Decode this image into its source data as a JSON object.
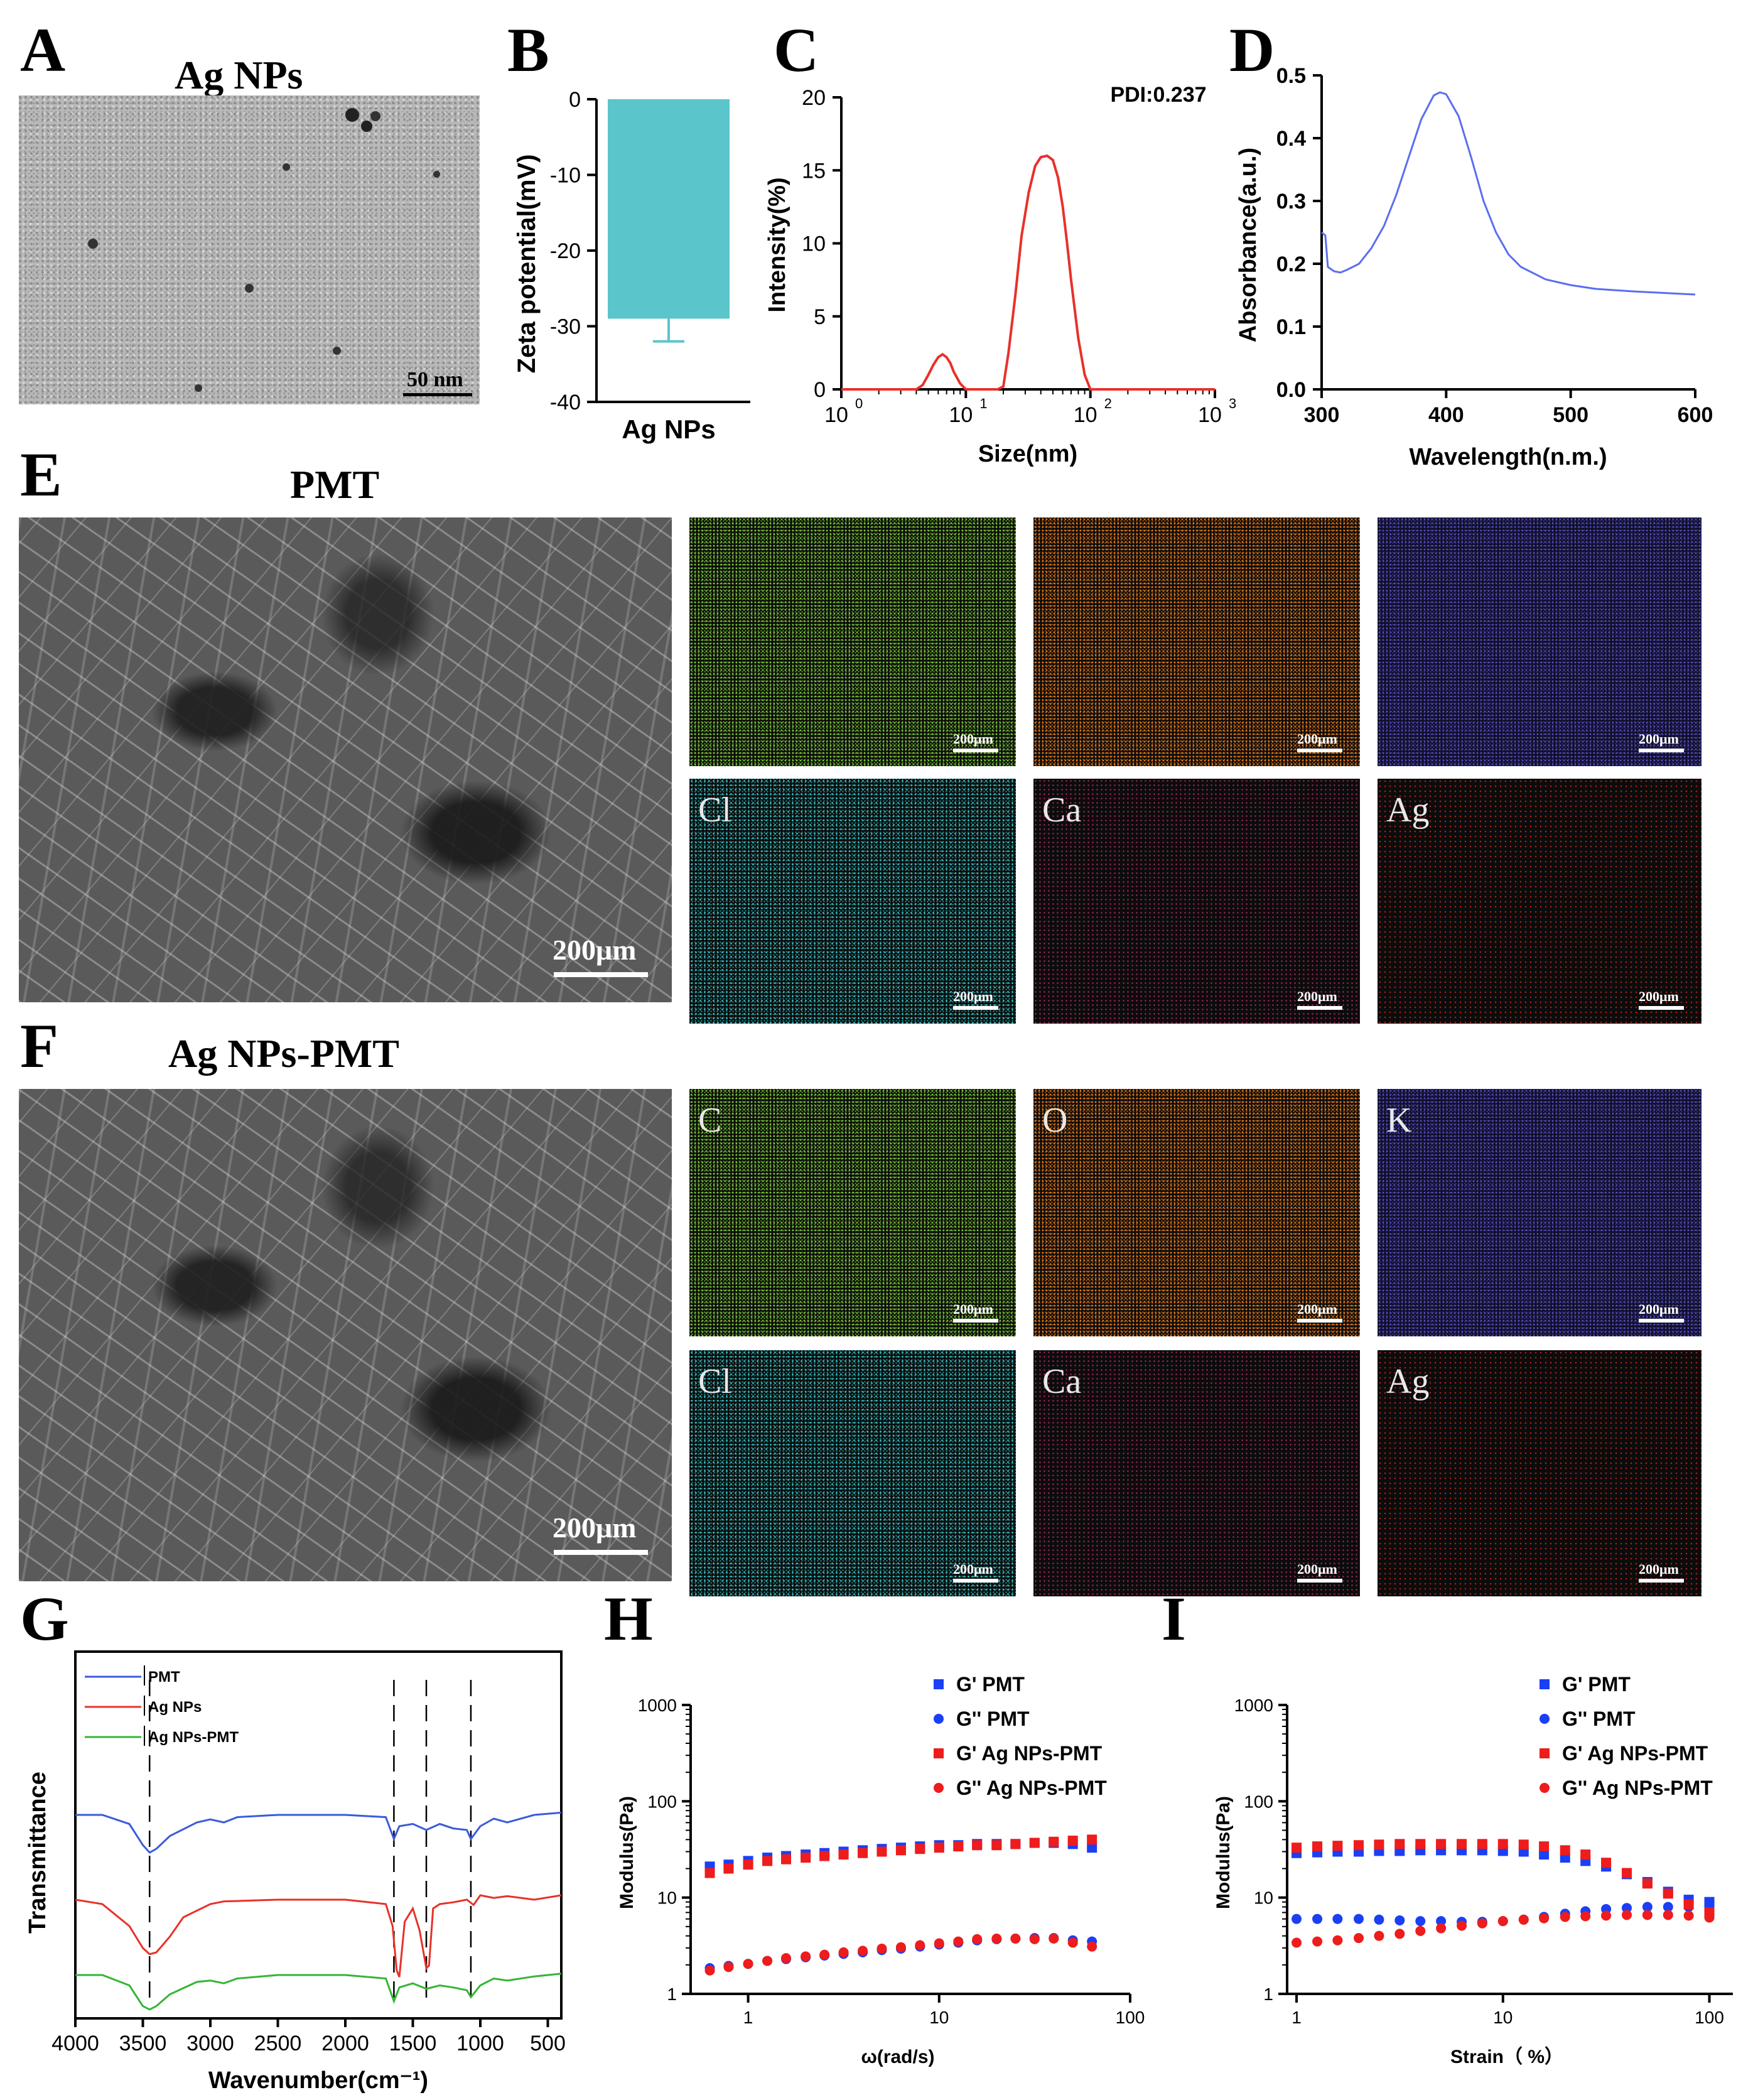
{
  "panel_letters": {
    "A": "A",
    "B": "B",
    "C": "C",
    "D": "D",
    "E": "E",
    "F": "F",
    "G": "G",
    "H": "H",
    "I": "I"
  },
  "panel_A": {
    "title": "Ag NPs",
    "scale_bar": "50 nm"
  },
  "panel_E": {
    "title": "PMT",
    "sem_scale_bar": "200μm",
    "map_scale_bar": "200μm",
    "elements": [
      "",
      "",
      "",
      "Cl",
      "Ca",
      "Ag"
    ]
  },
  "panel_F": {
    "title": "Ag NPs-PMT",
    "sem_scale_bar": "200μm",
    "map_scale_bar": "200μm",
    "elements": [
      "C",
      "O",
      "K",
      "Cl",
      "Ca",
      "Ag"
    ]
  },
  "colors": {
    "bar": "#5bc5cc",
    "dls": "#e8312a",
    "uv": "#5a6ef0",
    "pmt": "#3b5bdb",
    "ag": "#e8312a",
    "agpmt": "#36b536",
    "gp_pmt": "#1a3ff5",
    "gp_ag": "#ee1c1c"
  },
  "chart_data": [
    {
      "id": "B",
      "type": "bar",
      "categories": [
        "Ag NPs"
      ],
      "values": [
        -29
      ],
      "error": [
        3
      ],
      "ylabel": "Zeta potential(mV)",
      "ylim": [
        -40,
        0
      ],
      "yticks": [
        "0",
        "-10",
        "-20",
        "-30",
        "-40"
      ]
    },
    {
      "id": "C",
      "type": "line",
      "title": "PDI:0.237",
      "xlabel": "Size(nm)",
      "ylabel": "Intensity(%)",
      "xscale": "log",
      "xlim": [
        1,
        1000
      ],
      "ylim": [
        0,
        20
      ],
      "yticks": [
        "0",
        "5",
        "10",
        "15",
        "20"
      ],
      "xticks": [
        "10",
        "10",
        "10",
        "10"
      ],
      "xtick_exps": [
        "0",
        "1",
        "2",
        "3"
      ],
      "x": [
        1,
        3,
        4,
        4.5,
        5,
        5.5,
        6,
        6.5,
        7,
        7.5,
        8,
        9,
        10,
        12,
        15,
        18,
        20,
        22,
        25,
        28,
        32,
        36,
        40,
        45,
        50,
        55,
        60,
        65,
        70,
        80,
        90,
        100,
        200,
        1000
      ],
      "y": [
        0,
        0,
        0,
        0.3,
        1.0,
        1.7,
        2.2,
        2.4,
        2.2,
        1.8,
        1.2,
        0.4,
        0,
        0,
        0,
        0,
        0.2,
        2.5,
        6.5,
        10.5,
        13.5,
        15.3,
        15.9,
        16,
        15.7,
        14.5,
        12.5,
        10,
        7.5,
        3.5,
        1.0,
        0,
        0,
        0
      ]
    },
    {
      "id": "D",
      "type": "line",
      "xlabel": "Wavelength(n.m.)",
      "ylabel": "Absorbance(a.u.)",
      "xlim": [
        300,
        600
      ],
      "ylim": [
        0,
        0.5
      ],
      "xticks": [
        "300",
        "400",
        "500",
        "600"
      ],
      "yticks": [
        "0.0",
        "0.1",
        "0.2",
        "0.3",
        "0.4",
        "0.5"
      ],
      "x": [
        300,
        303,
        305,
        310,
        315,
        320,
        330,
        340,
        350,
        360,
        370,
        380,
        390,
        395,
        400,
        410,
        420,
        430,
        440,
        450,
        460,
        480,
        500,
        520,
        550,
        580,
        600
      ],
      "y": [
        0.25,
        0.245,
        0.195,
        0.188,
        0.186,
        0.19,
        0.2,
        0.225,
        0.26,
        0.31,
        0.37,
        0.43,
        0.468,
        0.473,
        0.47,
        0.435,
        0.37,
        0.3,
        0.25,
        0.215,
        0.195,
        0.175,
        0.166,
        0.16,
        0.156,
        0.153,
        0.151
      ]
    },
    {
      "id": "G",
      "type": "line",
      "xlabel": "Wavenumber(cm⁻¹)",
      "ylabel": "Transmittance",
      "xlim": [
        4000,
        400
      ],
      "xticks": [
        "4000",
        "3500",
        "3000",
        "2500",
        "2000",
        "1500",
        "1000",
        "500"
      ],
      "series": [
        {
          "name": "PMT",
          "offset": 2,
          "x": [
            4000,
            3800,
            3600,
            3500,
            3450,
            3400,
            3300,
            3100,
            3000,
            2900,
            2800,
            2500,
            2000,
            1700,
            1640,
            1600,
            1500,
            1400,
            1300,
            1200,
            1100,
            1070,
            1000,
            900,
            800,
            600,
            400
          ],
          "y": [
            0,
            0,
            -0.12,
            -0.4,
            -0.5,
            -0.45,
            -0.28,
            -0.1,
            -0.06,
            -0.1,
            -0.03,
            0,
            0,
            -0.03,
            -0.32,
            -0.15,
            -0.12,
            -0.2,
            -0.12,
            -0.18,
            -0.2,
            -0.32,
            -0.15,
            -0.05,
            -0.1,
            0,
            0.03
          ]
        },
        {
          "name": "Ag NPs",
          "offset": 1,
          "x": [
            4000,
            3800,
            3600,
            3500,
            3450,
            3400,
            3300,
            3200,
            3000,
            2900,
            2500,
            2000,
            1700,
            1650,
            1620,
            1600,
            1560,
            1500,
            1450,
            1400,
            1380,
            1350,
            1300,
            1200,
            1100,
            1050,
            1000,
            900,
            800,
            600,
            400
          ],
          "y": [
            0,
            -0.05,
            -0.3,
            -0.55,
            -0.62,
            -0.6,
            -0.42,
            -0.2,
            -0.05,
            -0.02,
            0,
            0,
            -0.05,
            -0.3,
            -0.8,
            -0.88,
            -0.25,
            -0.1,
            -0.35,
            -0.78,
            -0.75,
            -0.1,
            -0.05,
            -0.03,
            0,
            -0.06,
            0.05,
            0.02,
            0.04,
            0,
            0.05
          ]
        },
        {
          "name": "Ag NPs-PMT",
          "offset": 0,
          "x": [
            4000,
            3800,
            3600,
            3500,
            3450,
            3400,
            3300,
            3100,
            3000,
            2900,
            2800,
            2500,
            2000,
            1700,
            1640,
            1600,
            1500,
            1400,
            1300,
            1200,
            1100,
            1070,
            1000,
            900,
            800,
            600,
            400
          ],
          "y": [
            0,
            0,
            -0.15,
            -0.45,
            -0.5,
            -0.45,
            -0.28,
            -0.1,
            -0.08,
            -0.12,
            -0.05,
            0,
            0,
            -0.05,
            -0.38,
            -0.18,
            -0.12,
            -0.2,
            -0.15,
            -0.18,
            -0.22,
            -0.32,
            -0.15,
            -0.05,
            -0.08,
            -0.02,
            0.02
          ]
        }
      ],
      "marker_lines": [
        3450,
        1640,
        1400,
        1070
      ]
    },
    {
      "id": "H",
      "type": "scatter",
      "xlabel": "ω(rad/s)",
      "ylabel": "Modulus(Pa)",
      "xscale": "log",
      "yscale": "log",
      "xlim": [
        0.5,
        100
      ],
      "ylim": [
        1,
        1000
      ],
      "xticks": [
        "1",
        "10",
        "100"
      ],
      "yticks": [
        "1",
        "10",
        "100",
        "1000"
      ],
      "x": [
        0.63,
        0.79,
        1,
        1.26,
        1.58,
        2,
        2.51,
        3.16,
        3.98,
        5.01,
        6.31,
        7.94,
        10,
        12.6,
        15.8,
        20,
        25.1,
        31.6,
        39.8,
        50.1,
        63.1
      ],
      "series": [
        {
          "name": "G' PMT",
          "marker": "square",
          "color": "#1a3ff5",
          "values": [
            21,
            22,
            24,
            26,
            27,
            28,
            29,
            30,
            31,
            32,
            33,
            34,
            35,
            35,
            36,
            36,
            36,
            37,
            37,
            36,
            33
          ]
        },
        {
          "name": "G'' PMT",
          "marker": "circle",
          "color": "#1a3ff5",
          "values": [
            1.85,
            1.95,
            2.05,
            2.2,
            2.3,
            2.4,
            2.5,
            2.6,
            2.7,
            2.85,
            2.95,
            3.1,
            3.25,
            3.4,
            3.6,
            3.7,
            3.75,
            3.8,
            3.8,
            3.6,
            3.5
          ]
        },
        {
          "name": "G' Ag NPs-PMT",
          "marker": "square",
          "color": "#ee1c1c",
          "values": [
            18,
            20,
            22,
            24,
            25,
            26,
            27,
            28,
            29,
            30,
            31,
            32,
            33,
            34,
            35,
            35,
            36,
            37,
            38,
            39,
            40
          ]
        },
        {
          "name": "G'' Ag NPs-PMT",
          "marker": "circle",
          "color": "#ee1c1c",
          "values": [
            1.75,
            1.9,
            2.05,
            2.2,
            2.35,
            2.45,
            2.55,
            2.7,
            2.8,
            2.95,
            3.05,
            3.2,
            3.35,
            3.5,
            3.7,
            3.75,
            3.75,
            3.7,
            3.75,
            3.4,
            3.1
          ]
        }
      ]
    },
    {
      "id": "I",
      "type": "scatter",
      "xlabel": "Strain（ %）",
      "ylabel": "Modulus(Pa)",
      "xscale": "log",
      "yscale": "log",
      "xlim": [
        0.9,
        130
      ],
      "ylim": [
        1,
        1000
      ],
      "xticks": [
        "1",
        "10",
        "100"
      ],
      "yticks": [
        "1",
        "10",
        "100",
        "1000"
      ],
      "x": [
        1,
        1.26,
        1.58,
        2,
        2.51,
        3.16,
        3.98,
        5.01,
        6.31,
        7.94,
        10,
        12.6,
        15.8,
        20,
        25.1,
        31.6,
        39.8,
        50.1,
        63.1,
        79.4,
        100
      ],
      "series": [
        {
          "name": "G' PMT",
          "marker": "square",
          "color": "#1a3ff5",
          "values": [
            29,
            29.5,
            30,
            30,
            30.5,
            30.5,
            31,
            31,
            31,
            31,
            30.5,
            30,
            28,
            26,
            24,
            21,
            17.5,
            14.5,
            11.5,
            9.5,
            9
          ]
        },
        {
          "name": "G'' PMT",
          "marker": "circle",
          "color": "#1a3ff5",
          "values": [
            6,
            6,
            6,
            6,
            5.9,
            5.8,
            5.7,
            5.7,
            5.6,
            5.6,
            5.7,
            5.9,
            6.3,
            6.8,
            7.2,
            7.6,
            7.8,
            8,
            8,
            8,
            8
          ]
        },
        {
          "name": "G' Ag NPs-PMT",
          "marker": "square",
          "color": "#ee1c1c",
          "values": [
            33,
            34,
            34.5,
            35,
            35.5,
            36,
            36,
            36,
            36,
            36,
            36,
            35.5,
            34,
            31,
            28,
            23,
            18,
            14,
            11,
            8.5,
            7
          ]
        },
        {
          "name": "G'' Ag NPs-PMT",
          "marker": "circle",
          "color": "#ee1c1c",
          "values": [
            3.4,
            3.5,
            3.6,
            3.8,
            4,
            4.2,
            4.5,
            4.8,
            5.1,
            5.4,
            5.7,
            5.9,
            6.1,
            6.3,
            6.4,
            6.5,
            6.6,
            6.6,
            6.6,
            6.5,
            6.2
          ]
        }
      ]
    }
  ]
}
